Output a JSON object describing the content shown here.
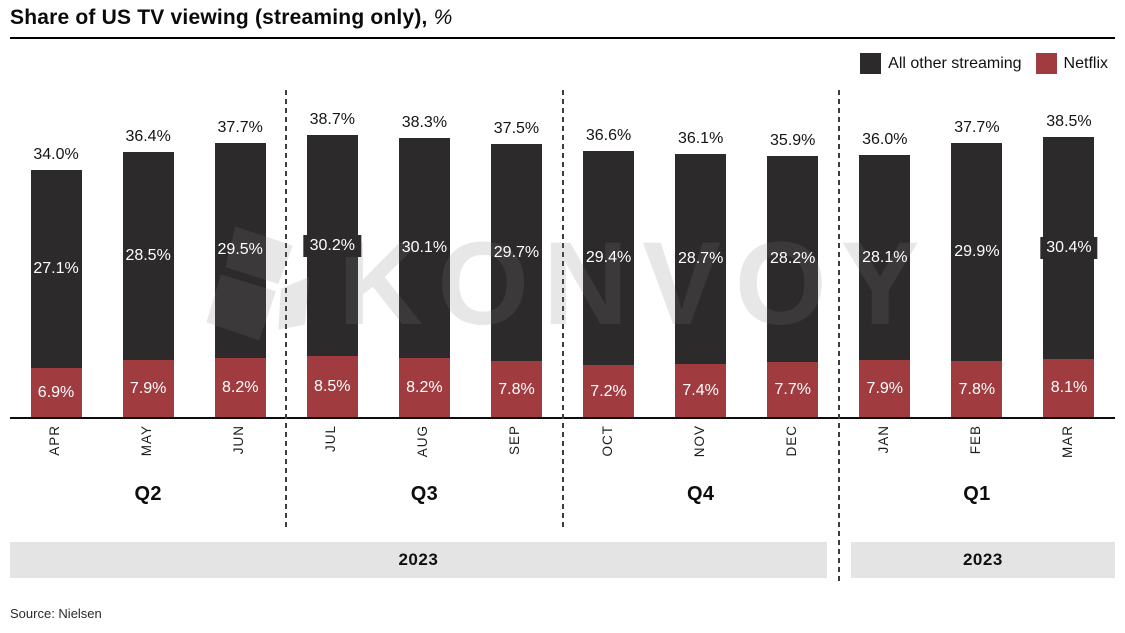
{
  "header": {
    "title": "Share of US TV viewing (streaming only),",
    "unit": "%"
  },
  "legend": {
    "items": [
      {
        "label": "All other streaming",
        "color": "#2D2A2B"
      },
      {
        "label": "Netflix",
        "color": "#A03C40"
      }
    ]
  },
  "watermark": {
    "text": "KONVOY"
  },
  "footer": {
    "source": "Source: Nielsen"
  },
  "colors": {
    "all_other_streaming": "#2D2A2B",
    "netflix": "#A03C40",
    "year_band": "#E4E4E4",
    "axis": "#0d0d0d"
  },
  "chart_data": {
    "type": "bar",
    "stacked": true,
    "title": "Share of US TV viewing (streaming only), %",
    "unit": "%",
    "grid": false,
    "legend_position": "top-right",
    "ylim": [
      0,
      42
    ],
    "categories": [
      "APR",
      "MAY",
      "JUN",
      "JUL",
      "AUG",
      "SEP",
      "OCT",
      "NOV",
      "DEC",
      "JAN",
      "FEB",
      "MAR"
    ],
    "series": [
      {
        "name": "Netflix",
        "color": "#A03C40",
        "values": [
          6.9,
          7.9,
          8.2,
          8.5,
          8.2,
          7.8,
          7.2,
          7.4,
          7.7,
          7.9,
          7.8,
          8.1
        ]
      },
      {
        "name": "All other streaming",
        "color": "#2D2A2B",
        "values": [
          27.1,
          28.5,
          29.5,
          30.2,
          30.1,
          29.7,
          29.4,
          28.7,
          28.2,
          28.1,
          29.9,
          30.4
        ]
      }
    ],
    "totals": [
      34.0,
      36.4,
      37.7,
      38.7,
      38.3,
      37.5,
      36.6,
      36.1,
      35.9,
      36.0,
      37.7,
      38.5
    ],
    "boxed_label_indices": [
      3,
      11
    ],
    "quarter_groups": [
      {
        "label": "Q2",
        "months": [
          "APR",
          "MAY",
          "JUN"
        ]
      },
      {
        "label": "Q3",
        "months": [
          "JUL",
          "AUG",
          "SEP"
        ]
      },
      {
        "label": "Q4",
        "months": [
          "OCT",
          "NOV",
          "DEC"
        ]
      },
      {
        "label": "Q1",
        "months": [
          "JAN",
          "FEB",
          "MAR"
        ]
      }
    ],
    "year_bands": [
      {
        "label": "2023",
        "span_quarters": [
          "Q2",
          "Q3",
          "Q4"
        ]
      },
      {
        "label": "2023",
        "span_quarters": [
          "Q1"
        ]
      }
    ]
  }
}
